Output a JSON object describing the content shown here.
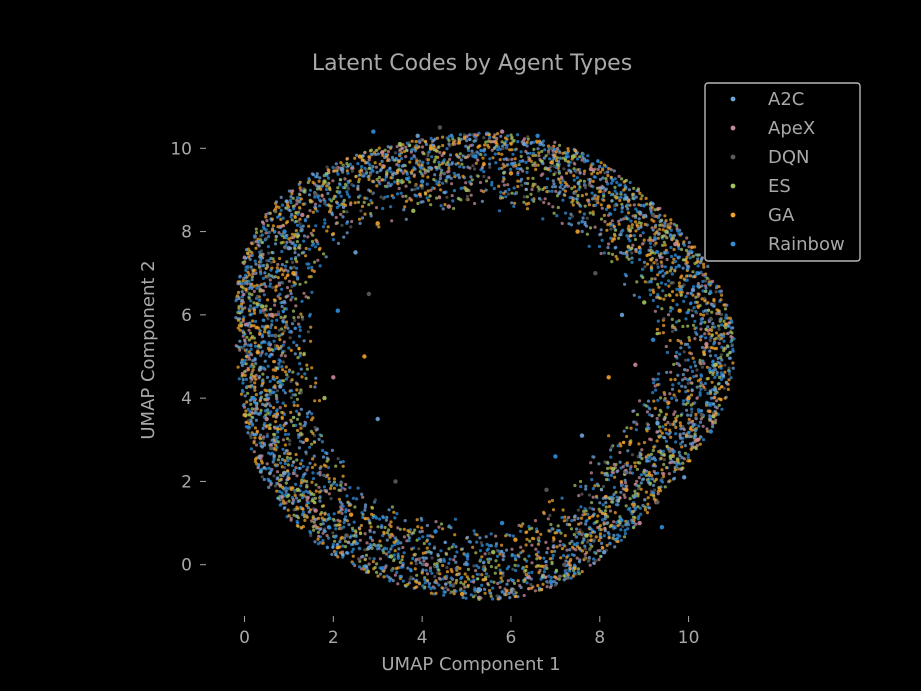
{
  "chart_data": {
    "type": "scatter",
    "title": "Latent Codes by Agent Types",
    "xlabel": "UMAP Component 1",
    "ylabel": "UMAP Component 2",
    "xlim": [
      -0.8,
      11.0
    ],
    "ylim": [
      -1.4,
      11.4
    ],
    "xticks": [
      0,
      2,
      4,
      6,
      8,
      10
    ],
    "yticks": [
      0,
      2,
      4,
      6,
      8,
      10
    ],
    "grid": false,
    "legend_position": "top-right",
    "ring": {
      "center": [
        5.2,
        4.9
      ],
      "inner_radius": 3.7,
      "outer_radius": 5.6
    },
    "series": [
      {
        "name": "A2C",
        "color": "#6fa3d8",
        "points": [
          [
            0.35,
            4.7
          ],
          [
            1.0,
            7.6
          ],
          [
            2.2,
            9.5
          ],
          [
            3.9,
            10.3
          ],
          [
            6.3,
            10.1
          ],
          [
            8.6,
            8.8
          ],
          [
            10.1,
            6.6
          ],
          [
            10.6,
            4.2
          ],
          [
            9.9,
            2.1
          ],
          [
            8.1,
            0.3
          ],
          [
            5.3,
            -0.6
          ],
          [
            2.8,
            0.4
          ],
          [
            0.9,
            2.2
          ],
          [
            3.0,
            3.5
          ],
          [
            7.6,
            3.1
          ],
          [
            2.5,
            7.5
          ],
          [
            8.5,
            6.0
          ],
          [
            9.3,
            3.4
          ]
        ]
      },
      {
        "name": "ApeX",
        "color": "#c78a95",
        "points": [
          [
            0.5,
            3.5
          ],
          [
            1.3,
            8.4
          ],
          [
            3.1,
            9.9
          ],
          [
            5.8,
            10.4
          ],
          [
            7.8,
            9.5
          ],
          [
            9.7,
            7.7
          ],
          [
            10.4,
            5.3
          ],
          [
            10.2,
            3.0
          ],
          [
            8.9,
            1.0
          ],
          [
            6.4,
            -0.3
          ],
          [
            4.1,
            0.0
          ],
          [
            1.6,
            1.3
          ],
          [
            0.6,
            6.0
          ],
          [
            2.0,
            4.5
          ],
          [
            8.8,
            4.8
          ],
          [
            4.6,
            8.6
          ]
        ]
      },
      {
        "name": "DQN",
        "color": "#5c5c5c",
        "points": [
          [
            0.7,
            5.5
          ],
          [
            1.6,
            8.9
          ],
          [
            4.4,
            10.5
          ],
          [
            6.9,
            10.0
          ],
          [
            9.2,
            8.4
          ],
          [
            10.5,
            5.9
          ],
          [
            10.3,
            3.6
          ],
          [
            9.3,
            1.5
          ],
          [
            7.2,
            0.0
          ],
          [
            4.7,
            -0.5
          ],
          [
            2.3,
            0.7
          ],
          [
            0.6,
            2.8
          ],
          [
            2.8,
            6.5
          ],
          [
            7.9,
            7.0
          ],
          [
            3.4,
            2.0
          ],
          [
            6.8,
            1.8
          ]
        ]
      },
      {
        "name": "ES",
        "color": "#a4c25d",
        "points": [
          [
            0.4,
            6.2
          ],
          [
            1.8,
            9.2
          ],
          [
            3.5,
            10.1
          ],
          [
            5.0,
            9.0
          ],
          [
            7.4,
            9.8
          ],
          [
            9.5,
            8.0
          ],
          [
            10.6,
            4.8
          ],
          [
            9.6,
            2.6
          ],
          [
            7.7,
            0.7
          ],
          [
            5.6,
            0.3
          ],
          [
            3.3,
            0.2
          ],
          [
            1.2,
            1.8
          ],
          [
            1.8,
            4.0
          ],
          [
            8.3,
            2.3
          ],
          [
            3.8,
            8.5
          ],
          [
            9.0,
            6.3
          ]
        ]
      },
      {
        "name": "GA",
        "color": "#f0a32b",
        "points": [
          [
            0.3,
            5.1
          ],
          [
            1.1,
            7.0
          ],
          [
            2.6,
            9.8
          ],
          [
            4.2,
            10.0
          ],
          [
            6.0,
            9.4
          ],
          [
            8.2,
            8.6
          ],
          [
            9.8,
            6.1
          ],
          [
            10.0,
            4.0
          ],
          [
            8.6,
            1.8
          ],
          [
            6.1,
            0.6
          ],
          [
            4.9,
            -0.7
          ],
          [
            2.4,
            1.2
          ],
          [
            1.4,
            3.0
          ],
          [
            3.0,
            8.2
          ],
          [
            7.5,
            8.0
          ],
          [
            2.7,
            5.0
          ],
          [
            8.2,
            4.5
          ]
        ]
      },
      {
        "name": "Rainbow",
        "color": "#2f8fdc",
        "points": [
          [
            0.2,
            4.0
          ],
          [
            0.9,
            8.0
          ],
          [
            2.9,
            10.4
          ],
          [
            5.2,
            9.8
          ],
          [
            6.6,
            10.3
          ],
          [
            8.9,
            7.5
          ],
          [
            10.2,
            7.0
          ],
          [
            10.5,
            3.2
          ],
          [
            9.4,
            0.9
          ],
          [
            6.9,
            -0.4
          ],
          [
            4.3,
            0.8
          ],
          [
            1.9,
            0.9
          ],
          [
            0.8,
            4.4
          ],
          [
            2.1,
            6.1
          ],
          [
            9.2,
            5.4
          ],
          [
            7.0,
            2.6
          ],
          [
            4.0,
            9.2
          ],
          [
            5.8,
            1.0
          ]
        ]
      }
    ]
  },
  "colors": {
    "background": "#000000",
    "text": "#a8a8a8",
    "legend_border": "#b8b8b8"
  }
}
